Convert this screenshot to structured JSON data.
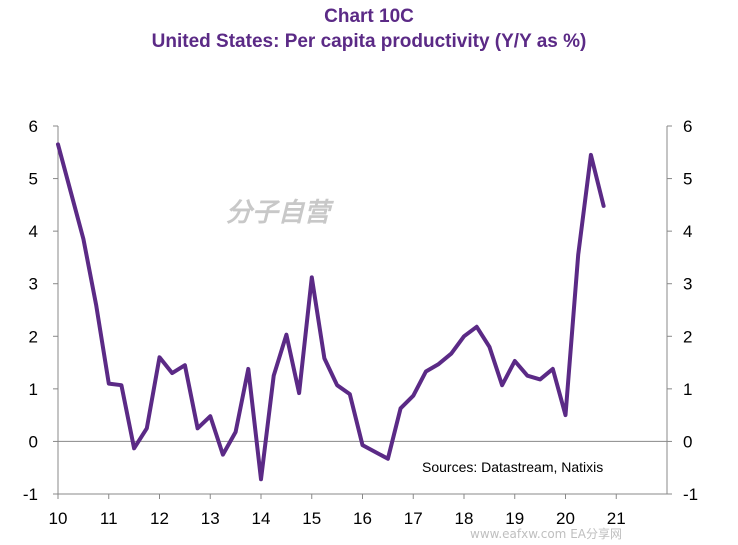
{
  "chart_data": {
    "type": "line",
    "title": "Chart 10C",
    "subtitle": "United States: Per capita productivity (Y/Y as %)",
    "source": "Sources:  Datastream,  Natixis",
    "watermark": "分子自营",
    "watermark2": "www.eafxw.com  EA分享网",
    "line_color": "#5b2a86",
    "ylim": [
      -1,
      6
    ],
    "yticks": [
      "-1",
      "0",
      "1",
      "2",
      "3",
      "4",
      "5",
      "6"
    ],
    "xlim": [
      10,
      22
    ],
    "xticks": [
      "10",
      "11",
      "12",
      "13",
      "14",
      "15",
      "16",
      "17",
      "18",
      "19",
      "20",
      "21"
    ],
    "series": [
      {
        "x": [
          10.0,
          10.25,
          10.5,
          10.75,
          11.0,
          11.25,
          11.5,
          11.75,
          12.0,
          12.25,
          12.5,
          12.75,
          13.0,
          13.25,
          13.5,
          13.75,
          14.0,
          14.25,
          14.5,
          14.75,
          15.0,
          15.25,
          15.5,
          15.75,
          16.0,
          16.5,
          16.75,
          17.0,
          17.25,
          17.5,
          17.75,
          18.0,
          18.25,
          18.5,
          18.75,
          19.0,
          19.25,
          19.5,
          19.75,
          20.0,
          20.25,
          20.5,
          20.75
        ],
        "y": [
          5.65,
          4.75,
          3.85,
          2.6,
          1.1,
          1.07,
          -0.13,
          0.25,
          1.6,
          1.3,
          1.45,
          0.25,
          0.48,
          -0.25,
          0.18,
          1.38,
          -0.72,
          1.25,
          2.03,
          0.92,
          3.12,
          1.58,
          1.07,
          0.9,
          -0.07,
          -0.33,
          0.63,
          0.87,
          1.33,
          1.47,
          1.67,
          2.0,
          2.18,
          1.8,
          1.07,
          1.53,
          1.25,
          1.18,
          1.38,
          0.5,
          3.55,
          5.45,
          4.48
        ]
      }
    ]
  }
}
